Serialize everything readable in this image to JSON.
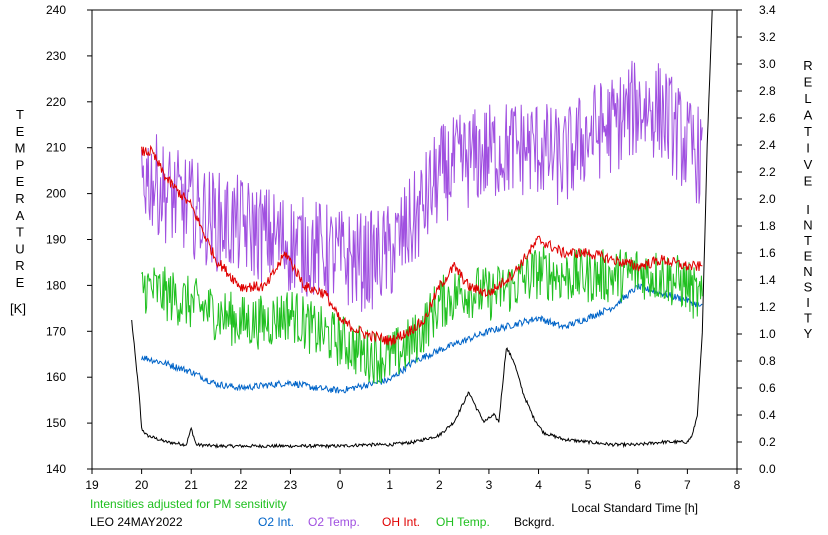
{
  "chart_data": {
    "type": "line",
    "x_axis": {
      "ticks": [
        19,
        20,
        21,
        22,
        23,
        0,
        1,
        2,
        3,
        4,
        5,
        6,
        7,
        8
      ],
      "label": "Local Standard Time [h]"
    },
    "y_left": {
      "label_letters": [
        "T",
        "E",
        "M",
        "P",
        "E",
        "R",
        "A",
        "T",
        "U",
        "R",
        "E"
      ],
      "unit": "[K]",
      "ticks": [
        140,
        150,
        160,
        170,
        180,
        190,
        200,
        210,
        220,
        230,
        240
      ],
      "range": [
        140,
        240
      ]
    },
    "y_right": {
      "label_letters": [
        "R",
        "E",
        "L",
        "A",
        "T",
        "I",
        "V",
        "E"
      ],
      "label_letters_2": [
        "I",
        "N",
        "T",
        "E",
        "N",
        "S",
        "I",
        "T",
        "Y"
      ],
      "ticks": [
        "0.0",
        "0.2",
        "0.4",
        "0.6",
        "0.8",
        "1.0",
        "1.2",
        "1.4",
        "1.6",
        "1.8",
        "2.0",
        "2.2",
        "2.4",
        "2.6",
        "2.8",
        "3.0",
        "3.2",
        "3.4"
      ],
      "range": [
        0,
        3.4
      ]
    },
    "note": "Intensities adjusted for PM sensitivity",
    "station": "LEO 24MAY2022",
    "legend": [
      {
        "name": "O2 Int.",
        "color": "#0064c8"
      },
      {
        "name": "O2 Temp.",
        "color": "#a050e0"
      },
      {
        "name": "OH Int.",
        "color": "#e00000"
      },
      {
        "name": "OH Temp.",
        "color": "#20c020"
      },
      {
        "name": "Bckgrd.",
        "color": "#000000"
      }
    ],
    "series": [
      {
        "name": "O2 Temp.",
        "axis": "left",
        "color": "#a050e0",
        "x": [
          20.0,
          20.5,
          21.0,
          21.5,
          22.0,
          22.5,
          23.0,
          23.5,
          24.0,
          24.5,
          25.0,
          25.5,
          26.0,
          26.5,
          27.0,
          27.5,
          28.0,
          28.5,
          29.0,
          29.5,
          30.0,
          30.5,
          31.0,
          31.3
        ],
        "y": [
          205,
          200,
          197,
          194,
          193,
          191,
          189,
          188,
          186,
          185,
          187,
          194,
          204,
          207,
          209,
          210,
          210,
          207,
          213,
          215,
          219,
          218,
          210,
          208
        ],
        "noise": 11
      },
      {
        "name": "OH Temp.",
        "axis": "left",
        "color": "#20c020",
        "x": [
          20.0,
          20.5,
          21.0,
          21.5,
          22.0,
          22.5,
          23.0,
          23.5,
          24.0,
          24.5,
          25.0,
          25.5,
          26.0,
          26.5,
          27.0,
          27.5,
          28.0,
          28.5,
          29.0,
          29.5,
          30.0,
          30.5,
          31.0,
          31.3
        ],
        "y": [
          180,
          178,
          176,
          174,
          172,
          172,
          174,
          170,
          168,
          165,
          164,
          168,
          176,
          179,
          178,
          180,
          183,
          182,
          182,
          182,
          183,
          182,
          180,
          176
        ],
        "noise": 6
      },
      {
        "name": "OH Int.",
        "axis": "right",
        "color": "#e00000",
        "x": [
          20.0,
          20.2,
          20.5,
          21.0,
          21.5,
          22.0,
          22.5,
          22.9,
          23.3,
          23.7,
          24.0,
          24.5,
          25.0,
          25.3,
          25.7,
          26.0,
          26.3,
          26.6,
          27.0,
          27.5,
          28.0,
          28.5,
          29.0,
          29.5,
          30.0,
          30.5,
          31.0,
          31.3
        ],
        "y": [
          2.35,
          2.35,
          2.15,
          1.95,
          1.55,
          1.35,
          1.35,
          1.6,
          1.35,
          1.3,
          1.1,
          1.0,
          0.95,
          1.0,
          1.1,
          1.35,
          1.5,
          1.35,
          1.3,
          1.45,
          1.7,
          1.6,
          1.6,
          1.55,
          1.5,
          1.55,
          1.5,
          1.5
        ],
        "noise": 0.04
      },
      {
        "name": "O2 Int.",
        "axis": "right",
        "color": "#0064c8",
        "x": [
          20.0,
          20.5,
          21.0,
          21.5,
          22.0,
          22.5,
          23.0,
          23.5,
          24.0,
          24.5,
          25.0,
          25.5,
          26.0,
          26.5,
          27.0,
          27.5,
          28.0,
          28.5,
          29.0,
          29.5,
          30.0,
          30.5,
          31.0,
          31.3
        ],
        "y": [
          0.83,
          0.78,
          0.72,
          0.63,
          0.6,
          0.62,
          0.64,
          0.6,
          0.58,
          0.62,
          0.66,
          0.8,
          0.88,
          0.95,
          1.02,
          1.07,
          1.12,
          1.05,
          1.12,
          1.2,
          1.35,
          1.3,
          1.25,
          1.2
        ],
        "noise": 0.025
      },
      {
        "name": "Bckgrd.",
        "axis": "right",
        "color": "#000000",
        "x": [
          19.8,
          19.95,
          20.0,
          20.1,
          20.5,
          20.9,
          21.0,
          21.1,
          21.5,
          22.0,
          22.5,
          23.0,
          23.5,
          24.0,
          24.5,
          25.0,
          25.5,
          26.0,
          26.3,
          26.5,
          26.6,
          26.75,
          26.9,
          27.1,
          27.2,
          27.35,
          27.5,
          27.7,
          27.9,
          28.1,
          28.5,
          29.0,
          29.5,
          30.0,
          30.5,
          31.0,
          31.1,
          31.2,
          31.3,
          31.4,
          31.5
        ],
        "y": [
          1.1,
          0.55,
          0.3,
          0.25,
          0.2,
          0.18,
          0.3,
          0.18,
          0.17,
          0.17,
          0.17,
          0.17,
          0.17,
          0.17,
          0.18,
          0.18,
          0.2,
          0.25,
          0.35,
          0.5,
          0.57,
          0.45,
          0.35,
          0.4,
          0.35,
          0.9,
          0.8,
          0.55,
          0.38,
          0.27,
          0.22,
          0.2,
          0.18,
          0.18,
          0.2,
          0.2,
          0.25,
          0.4,
          1.0,
          2.4,
          3.4
        ],
        "noise": 0.012
      }
    ]
  }
}
